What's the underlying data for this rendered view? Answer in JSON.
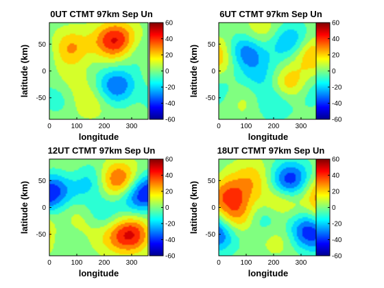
{
  "chart_data": [
    {
      "type": "heatmap",
      "title": "0UT CTMT 97km Sep Un",
      "xlabel": "longitude",
      "ylabel": "latitude (km)",
      "xlim": [
        0,
        360
      ],
      "ylim": [
        -90,
        90
      ],
      "xticks": [
        0,
        100,
        200,
        300
      ],
      "yticks": [
        50,
        0,
        -50
      ],
      "colorbar": {
        "range": [
          -60,
          60
        ],
        "ticks": [
          60,
          40,
          20,
          0,
          -20,
          -40,
          -60
        ]
      },
      "blobs": [
        {
          "lon": 85,
          "lat": 42,
          "value": 38
        },
        {
          "lon": 250,
          "lat": 58,
          "value": 40
        },
        {
          "lon": 250,
          "lat": -30,
          "value": -42
        },
        {
          "lon": 140,
          "lat": 42,
          "value": -20
        },
        {
          "lon": 30,
          "lat": -45,
          "value": -18
        },
        {
          "lon": 75,
          "lat": -25,
          "value": 12
        },
        {
          "lon": 150,
          "lat": -55,
          "value": 15
        },
        {
          "lon": 195,
          "lat": 48,
          "value": 18
        },
        {
          "lon": 335,
          "lat": 42,
          "value": -15
        },
        {
          "lon": 310,
          "lat": -40,
          "value": 14
        }
      ]
    },
    {
      "type": "heatmap",
      "title": "6UT CTMT 97km Sep Un",
      "xlabel": "longitude",
      "ylabel": "latitude (km)",
      "xlim": [
        0,
        360
      ],
      "ylim": [
        -90,
        90
      ],
      "xticks": [
        0,
        100,
        200,
        300
      ],
      "yticks": [
        50,
        0,
        -50
      ],
      "colorbar": {
        "range": [
          -60,
          60
        ],
        "ticks": [
          60,
          40,
          20,
          0,
          -20,
          -40,
          -60
        ]
      },
      "blobs": [
        {
          "lon": 90,
          "lat": 35,
          "value": -40
        },
        {
          "lon": 255,
          "lat": 55,
          "value": -32
        },
        {
          "lon": 260,
          "lat": -25,
          "value": 32
        },
        {
          "lon": 165,
          "lat": 70,
          "value": 18
        },
        {
          "lon": 155,
          "lat": -10,
          "value": -18
        },
        {
          "lon": 30,
          "lat": 25,
          "value": 14
        },
        {
          "lon": 340,
          "lat": 35,
          "value": 25
        },
        {
          "lon": 110,
          "lat": -55,
          "value": 12
        },
        {
          "lon": 195,
          "lat": -55,
          "value": -22
        },
        {
          "lon": 330,
          "lat": -35,
          "value": -18
        }
      ]
    },
    {
      "type": "heatmap",
      "title": "12UT CTMT 97km Sep Un",
      "xlabel": "longitude",
      "ylabel": "latitude (km)",
      "xlim": [
        0,
        360
      ],
      "ylim": [
        -90,
        90
      ],
      "xticks": [
        0,
        100,
        200,
        300
      ],
      "yticks": [
        50,
        0,
        -50
      ],
      "colorbar": {
        "range": [
          -60,
          60
        ],
        "ticks": [
          60,
          40,
          20,
          0,
          -20,
          -40,
          -60
        ]
      },
      "blobs": [
        {
          "lon": 250,
          "lat": 50,
          "value": 45
        },
        {
          "lon": 305,
          "lat": -50,
          "value": 45
        },
        {
          "lon": 15,
          "lat": 35,
          "value": -32
        },
        {
          "lon": 150,
          "lat": 50,
          "value": -28
        },
        {
          "lon": 320,
          "lat": 20,
          "value": -28
        },
        {
          "lon": 185,
          "lat": -15,
          "value": -20
        },
        {
          "lon": 115,
          "lat": -25,
          "value": 18
        },
        {
          "lon": 90,
          "lat": 60,
          "value": 12
        },
        {
          "lon": 40,
          "lat": -50,
          "value": -15
        },
        {
          "lon": 230,
          "lat": -55,
          "value": 14
        }
      ]
    },
    {
      "type": "heatmap",
      "title": "18UT CTMT 97km Sep Un",
      "xlabel": "longitude",
      "ylabel": "latitude (km)",
      "xlim": [
        0,
        360
      ],
      "ylim": [
        -90,
        90
      ],
      "xticks": [
        0,
        100,
        200,
        300
      ],
      "yticks": [
        50,
        0,
        -50
      ],
      "colorbar": {
        "range": [
          -60,
          60
        ],
        "ticks": [
          60,
          40,
          20,
          0,
          -20,
          -40,
          -60
        ]
      },
      "blobs": [
        {
          "lon": 265,
          "lat": 50,
          "value": -50
        },
        {
          "lon": 45,
          "lat": 20,
          "value": 30
        },
        {
          "lon": 70,
          "lat": -20,
          "value": 30
        },
        {
          "lon": 320,
          "lat": -45,
          "value": -38
        },
        {
          "lon": 125,
          "lat": 55,
          "value": 20
        },
        {
          "lon": 160,
          "lat": -20,
          "value": -22
        },
        {
          "lon": 220,
          "lat": 10,
          "value": 22
        },
        {
          "lon": 230,
          "lat": -55,
          "value": 16
        },
        {
          "lon": 15,
          "lat": -50,
          "value": -15
        },
        {
          "lon": 330,
          "lat": 40,
          "value": 15
        }
      ]
    }
  ]
}
